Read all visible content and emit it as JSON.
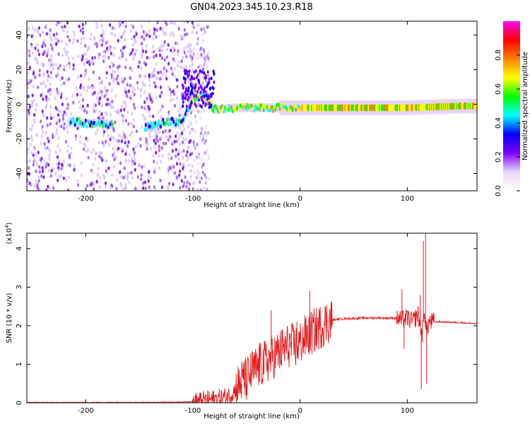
{
  "title": "GN04.2023.345.10.23.R18",
  "chart_data": [
    {
      "type": "heatmap",
      "name": "spectrogram",
      "xlabel": "Height of straight line (km)",
      "ylabel": "Frequency (Hz)",
      "xlim": [
        -255,
        165
      ],
      "ylim": [
        -50,
        48
      ],
      "xticks": [
        -200,
        -100,
        0,
        100
      ],
      "xtick_labels": [
        "-200",
        "-100",
        "0",
        "100"
      ],
      "yticks": [
        -40,
        -20,
        0,
        20,
        40
      ],
      "ytick_labels": [
        "-40",
        "-20",
        "0",
        "20",
        "40"
      ],
      "colorbar": {
        "label": "Normalized spectral amplitude",
        "range": [
          0,
          1
        ],
        "ticks": [
          0.0,
          0.2,
          0.4,
          0.6,
          0.8
        ],
        "tick_labels": [
          "0.0",
          "0.2",
          "0.4",
          "0.6",
          "0.8"
        ],
        "colors": [
          "#ffffff",
          "#e9d7ff",
          "#7b00ff",
          "#0000ff",
          "#00ffff",
          "#00ff00",
          "#ffff00",
          "#ff8000",
          "#ff0000",
          "#ff00ff"
        ]
      },
      "band_center_hz": [
        {
          "x": -215,
          "y": -10
        },
        {
          "x": -200,
          "y": -11
        },
        {
          "x": -185,
          "y": -11
        },
        {
          "x": -140,
          "y": -13
        },
        {
          "x": -125,
          "y": -10
        },
        {
          "x": -110,
          "y": -10
        },
        {
          "x": -100,
          "y": 3
        },
        {
          "x": -90,
          "y": 5
        },
        {
          "x": -80,
          "y": -3
        },
        {
          "x": -60,
          "y": -2
        },
        {
          "x": -40,
          "y": -2
        },
        {
          "x": -20,
          "y": -2
        },
        {
          "x": 0,
          "y": -2
        },
        {
          "x": 50,
          "y": -2
        },
        {
          "x": 100,
          "y": -2
        },
        {
          "x": 150,
          "y": -1
        },
        {
          "x": 165,
          "y": -1
        }
      ]
    },
    {
      "type": "line",
      "name": "snr",
      "xlabel": "Height of straight line (km)",
      "ylabel": "SNR (10 * v/v)",
      "yscale_label": "(x10",
      "yscale_exp": "4",
      "ylabel_unit_multiplier": "x10^4",
      "xlim": [
        -255,
        165
      ],
      "ylim": [
        0,
        4.4
      ],
      "xticks": [
        -200,
        -100,
        0,
        100
      ],
      "xtick_labels": [
        "-200",
        "-100",
        "0",
        "100"
      ],
      "yticks": [
        0,
        1,
        2,
        3,
        4
      ],
      "ytick_labels": [
        "0",
        "1",
        "2",
        "3",
        "4"
      ],
      "color": "#e41a1c",
      "x": [
        -255,
        -200,
        -150,
        -110,
        -95,
        -85,
        -75,
        -70,
        -65,
        -60,
        -55,
        -50,
        -45,
        -40,
        -35,
        -30,
        -25,
        -20,
        -15,
        -10,
        -5,
        0,
        5,
        10,
        15,
        20,
        25,
        30,
        40,
        50,
        60,
        70,
        80,
        90,
        95,
        100,
        105,
        110,
        112,
        114,
        116,
        118,
        120,
        125,
        130,
        140,
        150,
        165
      ],
      "y": [
        0.01,
        0.01,
        0.01,
        0.02,
        0.04,
        0.08,
        0.12,
        0.15,
        0.2,
        0.35,
        0.55,
        0.6,
        0.8,
        0.9,
        1.0,
        1.1,
        1.2,
        1.3,
        1.4,
        1.5,
        1.45,
        1.55,
        1.7,
        1.8,
        1.9,
        2.0,
        2.1,
        2.15,
        2.18,
        2.19,
        2.2,
        2.2,
        2.2,
        2.2,
        2.15,
        2.2,
        2.1,
        2.3,
        2.0,
        1.8,
        2.4,
        1.8,
        2.1,
        2.1,
        2.1,
        2.09,
        2.08,
        2.05
      ],
      "spikes": [
        {
          "x": -52,
          "y": 1.1
        },
        {
          "x": -38,
          "y": 1.55
        },
        {
          "x": -27,
          "y": 2.4
        },
        {
          "x": -17,
          "y": 1.9
        },
        {
          "x": -3,
          "y": 2.1
        },
        {
          "x": 9,
          "y": 2.9
        },
        {
          "x": 95,
          "y": 2.95
        },
        {
          "x": 97,
          "y": 1.4
        },
        {
          "x": 112,
          "y": 2.8
        },
        {
          "x": 113,
          "y": 0.35
        },
        {
          "x": 115,
          "y": 4.2
        },
        {
          "x": 117,
          "y": 4.4
        },
        {
          "x": 118,
          "y": 0.5
        }
      ]
    }
  ]
}
